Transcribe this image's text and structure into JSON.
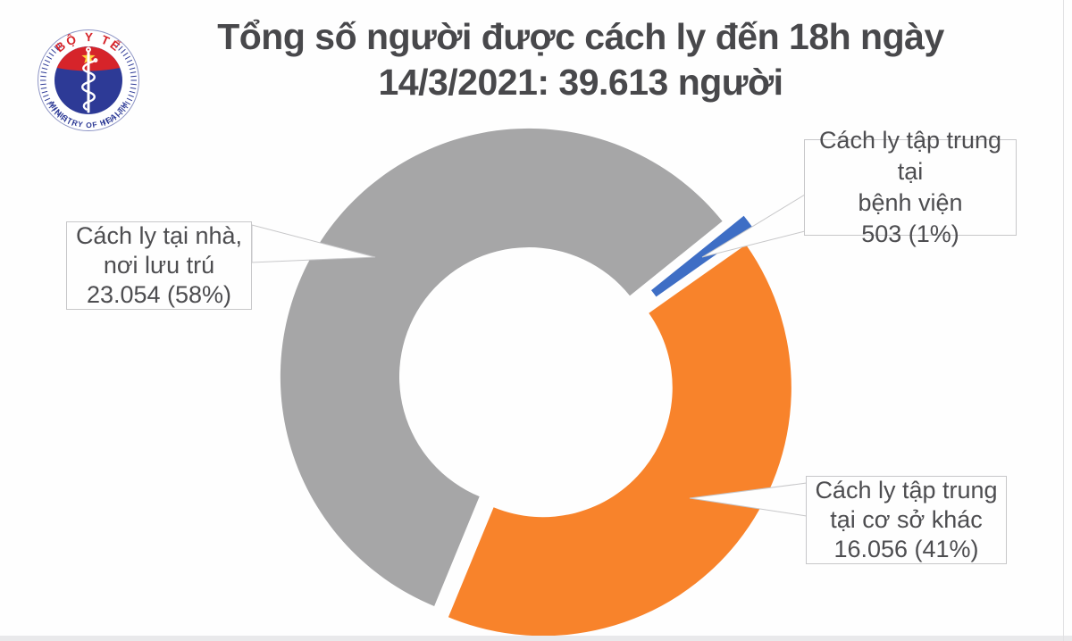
{
  "page": {
    "background": "#FEFEFE",
    "bottom_strip_color": "#E9E9EB"
  },
  "header": {
    "title_line1": "Tổng số người được cách ly đến 18h ngày",
    "title_line2": "14/3/2021: 39.613 người",
    "title_color": "#48484B"
  },
  "logo": {
    "top_text": "BỘ Y TẾ",
    "bottom_text": "MINISTRY OF HEALTH",
    "red": "#D6242A",
    "blue": "#2D3A96",
    "star_yellow": "#FFD23B"
  },
  "chart_data": {
    "type": "pie",
    "subtype": "exploded-doughnut",
    "title": "Tổng số người được cách ly đến 18h ngày 14/3/2021: 39.613 người",
    "total_value": "39.613",
    "total_unit": "người",
    "legend_position": "callouts",
    "slices": [
      {
        "id": "hospital",
        "label": "Cách ly tập trung tại bệnh viện",
        "value": 503,
        "pct": 1,
        "display_value": "503 (1%)",
        "color": "#3E6EC5"
      },
      {
        "id": "other_facility",
        "label": "Cách ly tập trung tại cơ sở khác",
        "value": 16056,
        "pct": 41,
        "display_value": "16.056 (41%)",
        "color": "#F8832B"
      },
      {
        "id": "home",
        "label": "Cách ly tại nhà, nơi lưu trú",
        "value": 23054,
        "pct": 58,
        "display_value": "23.054 (58%)",
        "color": "#A6A6A7"
      }
    ]
  },
  "callouts": {
    "home": {
      "lines": [
        "Cách ly tại nhà,",
        "nơi lưu trú",
        "23.054 (58%)"
      ]
    },
    "hospital": {
      "lines": [
        "Cách ly tập trung tại",
        "bệnh viện",
        "503 (1%)"
      ]
    },
    "other": {
      "lines": [
        "Cách ly tập trung",
        "tại cơ sở khác",
        "16.056 (41%)"
      ]
    }
  }
}
